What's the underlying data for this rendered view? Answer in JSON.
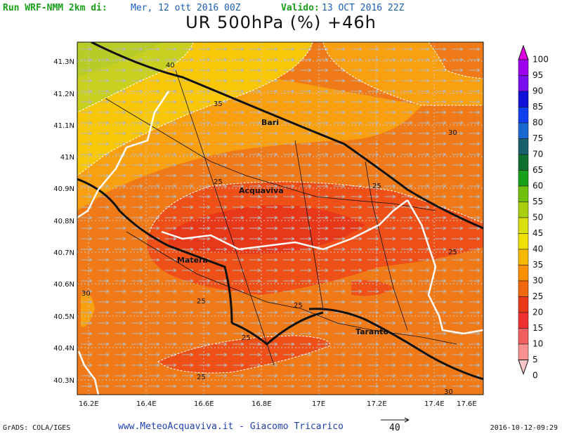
{
  "header": {
    "run_label": "Run WRF-NMM 2km di:",
    "run_value": "Mer, 12 ott 2016 00Z",
    "valid_label": "Valido:",
    "valid_value": "13 OCT 2016 22Z"
  },
  "title": "UR 500hPa (%) +46h",
  "map": {
    "x_ticks": [
      "16.2E",
      "16.4E",
      "16.6E",
      "16.8E",
      "17E",
      "17.2E",
      "17.4E",
      "17.6E"
    ],
    "y_ticks": [
      "41.3N",
      "41.2N",
      "41.1N",
      "41N",
      "40.9N",
      "40.8N",
      "40.7N",
      "40.6N",
      "40.5N",
      "40.4N",
      "40.3N"
    ],
    "cities": [
      "Bari",
      "Acquaviva",
      "Matera",
      "Taranto"
    ],
    "contour_labels": [
      "40",
      "35",
      "30",
      "25",
      "25",
      "25",
      "25",
      "25",
      "25",
      "25",
      "30",
      "30"
    ]
  },
  "colorbar": {
    "levels": [
      "100",
      "95",
      "90",
      "85",
      "80",
      "75",
      "70",
      "65",
      "60",
      "55",
      "50",
      "45",
      "40",
      "35",
      "30",
      "25",
      "20",
      "15",
      "10",
      "5",
      "0"
    ],
    "colors": [
      "#e000e0",
      "#a000f0",
      "#7a10f0",
      "#1010d8",
      "#1040f0",
      "#1868d0",
      "#186070",
      "#107030",
      "#18a018",
      "#70c010",
      "#a8d010",
      "#d8e010",
      "#f0e000",
      "#f8b800",
      "#f89000",
      "#f06810",
      "#e83818",
      "#f03030",
      "#f06060",
      "#f89090",
      "#f8c8c8"
    ]
  },
  "vector": {
    "value": "40"
  },
  "footer": {
    "left": "GrADS: COLA/IGES",
    "center": "www.MeteoAcquaviva.it - Giacomo Tricarico",
    "right": "2016-10-12-09:29"
  }
}
